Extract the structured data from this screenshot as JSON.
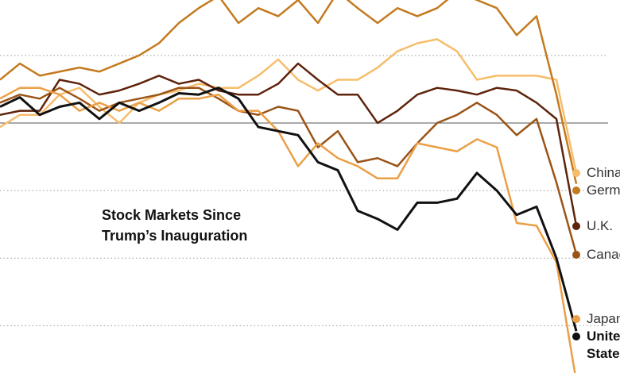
{
  "chart_data": {
    "type": "line",
    "title": "Stock Markets Since Trump’s Inauguration",
    "categories": [
      null,
      null,
      null,
      null,
      null,
      null,
      null,
      null,
      null,
      null,
      null,
      null,
      null,
      null,
      null,
      null,
      null,
      null,
      null,
      null,
      null,
      null,
      null,
      null,
      null,
      null,
      null,
      null,
      null,
      null
    ],
    "ylim": [
      -18.5,
      9.1
    ],
    "yticks": [
      5,
      0,
      -5,
      -10,
      -15
    ],
    "grid": true,
    "series": [
      {
        "name": "China",
        "color": "#f7bd6b",
        "values": [
          -0.3,
          0.6,
          0.6,
          2.1,
          2.6,
          1.2,
          0,
          1.5,
          2.1,
          2.4,
          2.9,
          2.6,
          2.6,
          3.5,
          4.7,
          3.2,
          2.4,
          3.2,
          3.2,
          4.1,
          5.3,
          5.9,
          6.2,
          5.3,
          3.2,
          3.5,
          3.5,
          3.5,
          3.2,
          -3.7
        ]
      },
      {
        "name": "Germany",
        "color": "#c47a1f",
        "values": [
          3.2,
          4.4,
          3.5,
          3.8,
          4.1,
          3.8,
          4.4,
          5,
          5.9,
          7.4,
          8.5,
          9.4,
          7.4,
          8.5,
          7.9,
          9.1,
          7.4,
          9.7,
          8.5,
          7.4,
          8.5,
          7.9,
          8.5,
          9.7,
          9.1,
          8.5,
          6.5,
          7.9,
          2.1,
          -4.5
        ]
      },
      {
        "name": "U.K.",
        "color": "#5e230c",
        "values": [
          0.6,
          0.9,
          0.9,
          3.2,
          2.9,
          2.1,
          2.4,
          2.9,
          3.5,
          2.9,
          3.2,
          2.4,
          2.1,
          2.1,
          2.9,
          4.4,
          3.2,
          2.1,
          2.1,
          0,
          0.9,
          2.1,
          2.6,
          2.4,
          2.1,
          2.6,
          2.4,
          1.5,
          0.3,
          -7.6
        ]
      },
      {
        "name": "Canada",
        "color": "#9a5417",
        "values": [
          1.5,
          2.1,
          1.8,
          2.6,
          1.8,
          0.9,
          1.5,
          1.8,
          2.1,
          2.6,
          2.6,
          1.8,
          0.9,
          0.6,
          1.2,
          0.9,
          -1.8,
          -0.6,
          -2.9,
          -2.6,
          -3.2,
          -1.5,
          0,
          0.6,
          1.5,
          0.6,
          -0.9,
          0.3,
          -4.4,
          -9.7
        ]
      },
      {
        "name": "Japan",
        "color": "#eb9f46",
        "values": [
          1.8,
          2.6,
          2.6,
          2.1,
          0.9,
          1.5,
          0.9,
          1.5,
          0.9,
          1.8,
          1.8,
          2.1,
          0.9,
          0.9,
          -0.6,
          -3.2,
          -1.5,
          -2.6,
          -3.2,
          -4.1,
          -4.1,
          -1.5,
          -1.8,
          -2.1,
          -1.2,
          -1.8,
          -7.4,
          -7.6,
          -10.3,
          -19.1
        ]
      },
      {
        "name": "United States",
        "color": "#111111",
        "values": [
          1.2,
          1.9,
          0.6,
          1.2,
          1.5,
          0.3,
          1.5,
          0.9,
          1.5,
          2.2,
          2.1,
          2.6,
          1.8,
          -0.3,
          -0.6,
          -0.9,
          -2.9,
          -3.5,
          -6.5,
          -7.1,
          -7.9,
          -5.9,
          -5.9,
          -5.6,
          -3.7,
          -5,
          -6.8,
          -6.2,
          -10,
          -15.4
        ]
      }
    ]
  }
}
